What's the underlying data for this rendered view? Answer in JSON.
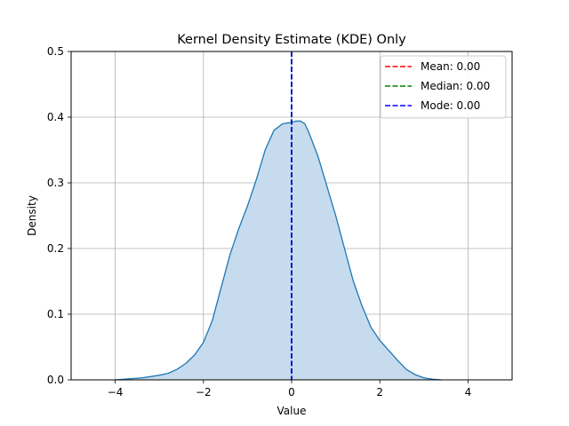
{
  "chart_data": {
    "type": "area",
    "title": "Kernel Density Estimate (KDE) Only",
    "xlabel": "Value",
    "ylabel": "Density",
    "xlim": [
      -5,
      5
    ],
    "ylim": [
      0,
      0.5
    ],
    "xticks": [
      -4,
      -2,
      0,
      2,
      4
    ],
    "xtick_labels": [
      "−4",
      "−2",
      "0",
      "2",
      "4"
    ],
    "yticks": [
      0,
      0.1,
      0.2,
      0.3,
      0.4,
      0.5
    ],
    "ytick_labels": [
      "0.0",
      "0.1",
      "0.2",
      "0.3",
      "0.4",
      "0.5"
    ],
    "grid": true,
    "legend_position": "top-right",
    "series": [
      {
        "color": "#1f77b4",
        "fill_color": "#c6dbed",
        "x": [
          -4.0,
          -3.8,
          -3.6,
          -3.4,
          -3.2,
          -3.0,
          -2.8,
          -2.6,
          -2.4,
          -2.2,
          -2.0,
          -1.8,
          -1.6,
          -1.4,
          -1.2,
          -1.0,
          -0.8,
          -0.6,
          -0.4,
          -0.2,
          0.0,
          0.1,
          0.2,
          0.3,
          0.4,
          0.6,
          0.8,
          1.0,
          1.2,
          1.4,
          1.6,
          1.8,
          2.0,
          2.2,
          2.4,
          2.6,
          2.8,
          3.0,
          3.2,
          3.4
        ],
        "y": [
          0.0,
          0.001,
          0.002,
          0.003,
          0.005,
          0.007,
          0.01,
          0.016,
          0.025,
          0.038,
          0.057,
          0.09,
          0.14,
          0.19,
          0.23,
          0.265,
          0.305,
          0.35,
          0.38,
          0.39,
          0.392,
          0.394,
          0.394,
          0.39,
          0.375,
          0.34,
          0.295,
          0.25,
          0.2,
          0.15,
          0.112,
          0.08,
          0.06,
          0.045,
          0.03,
          0.016,
          0.008,
          0.003,
          0.001,
          0.0
        ]
      }
    ],
    "vlines": [
      {
        "label": "Mean: 0.00",
        "x": 0.0,
        "color": "#ff0000"
      },
      {
        "label": "Median: 0.00",
        "x": 0.0,
        "color": "#008000"
      },
      {
        "label": "Mode: 0.00",
        "x": 0.0,
        "color": "#0000ff"
      }
    ]
  }
}
